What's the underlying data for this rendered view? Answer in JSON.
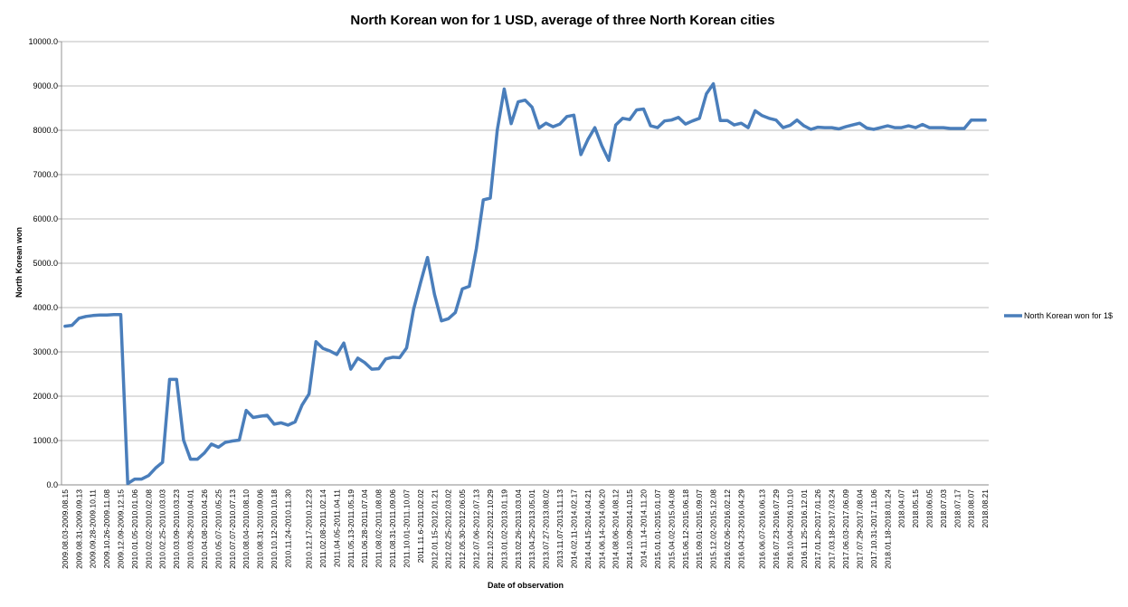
{
  "chart_data": {
    "type": "line",
    "title": "North Korean won for 1 USD, average of three North Korean cities",
    "xlabel": "Date of observation",
    "ylabel": "North Korean won",
    "ylim": [
      0,
      10000
    ],
    "y_ticks": [
      "0.0",
      "1000.0",
      "2000.0",
      "3000.0",
      "4000.0",
      "5000.0",
      "6000.0",
      "7000.0",
      "8000.0",
      "9000.0",
      "10000.0"
    ],
    "grid": "horizontal",
    "legend_position": "right",
    "x_tick_labels": [
      "2009.08.03-2009.08.15",
      "2009.08.31-2009.09.13",
      "2009.09.28-2009.10.11",
      "2009.10.26-2009.11.08",
      "2009.12.09-2009.12.15",
      "2010.01.05-2010.01.06",
      "2010.02.02-2010.02.08",
      "2010.02.25-2010.03.03",
      "2010.03.09-2010.03.23",
      "2010.03.26-2010.04.01",
      "2010.04.08-2010.04.26",
      "2010.05.07-2010.05.25",
      "2010.07.07-2010.07.13",
      "2010.08.04-2010.08.10",
      "2010.08.31-2010.09.06",
      "2010.10.12-2010.10.18",
      "2010.11.24-2010.11.30",
      "2010.12.17-2010.12.23",
      "2011.02.08-2011.02.14",
      "2011.04.05-2011.04.11",
      "2011.05.13-2011.05.19",
      "2011.06.28-2011.07.04",
      "2011.08.02-2011.08.08",
      "2011.08.31-2011.09.06",
      "2011.10.01-2011.10.07",
      "2011.11.6-2011.02.02",
      "2012.01.15-2012.01.21",
      "2012.02.25-2012.03.02",
      "2012.05.30-2012.06.05",
      "2012.07.06-2012.07.13",
      "2012.10.22-2012.10.29",
      "2013.01.02-2013.01.19",
      "2013.02.26-2013.03.04",
      "2013.04.25-2013.05.01",
      "2013.07.27-2013.08.02",
      "2013.11.07-2013.11.13",
      "2014.02.11-2014.02.17",
      "2014.04.15-2014.04.21",
      "2014.06.14-2014.06.20",
      "2014.08.06-2014.08.12",
      "2014.10.09-2014.10.15",
      "2014.11.14-2014.11.20",
      "2015.01.01-2015.01.07",
      "2015.04.02-2015.04.08",
      "2015.06.12-2015.06.18",
      "2015.09.01-2015.09.07",
      "2015.12.02-2015.12.08",
      "2016.02.06-2016.02.12",
      "2016.04.23-2016.04.29",
      "2016.06.07-2016.06.13",
      "2016.07.23-2016.07.29",
      "2016.10.04-2016.10.10",
      "2016.11.25-2016.12.01",
      "2017.01.20-2017.01.26",
      "2017.03.18-2017.03.24",
      "2017.06.03-2017.06.09",
      "2017.07.29-2017.08.04",
      "2017.10.31-2017.11.06",
      "2018.01.18-2018.01.24",
      "2018.04.07",
      "2018.05.15",
      "2018.06.05",
      "2018.07.03",
      "2018.07.17",
      "2018.08.07",
      "2018.08.21"
    ],
    "series": [
      {
        "name": "North Korean won for 1$",
        "color": "#4a7ebb",
        "values": [
          3580,
          3600,
          3760,
          3800,
          3820,
          3830,
          3830,
          3840,
          3840,
          30,
          130,
          130,
          210,
          380,
          510,
          2380,
          2380,
          1010,
          580,
          580,
          720,
          920,
          850,
          960,
          990,
          1010,
          1680,
          1520,
          1550,
          1570,
          1370,
          1400,
          1350,
          1420,
          1800,
          2050,
          3230,
          3080,
          3020,
          2940,
          3200,
          2610,
          2860,
          2760,
          2610,
          2620,
          2840,
          2880,
          2870,
          3090,
          3960,
          4560,
          5130,
          4300,
          3700,
          3750,
          3890,
          4420,
          4480,
          5330,
          6430,
          6470,
          8000,
          8930,
          8150,
          8640,
          8680,
          8520,
          8050,
          8160,
          8080,
          8140,
          8310,
          8340,
          7450,
          7790,
          8060,
          7650,
          7320,
          8120,
          8270,
          8240,
          8460,
          8480,
          8100,
          8060,
          8210,
          8230,
          8290,
          8140,
          8210,
          8270,
          8820,
          9050,
          8220,
          8220,
          8120,
          8160,
          8060,
          8440,
          8330,
          8270,
          8230,
          8060,
          8110,
          8230,
          8100,
          8020,
          8070,
          8060,
          8060,
          8030,
          8080,
          8120,
          8160,
          8050,
          8020,
          8060,
          8100,
          8060,
          8060,
          8100,
          8060,
          8130,
          8060,
          8060,
          8060,
          8040,
          8040,
          8040,
          8230,
          8230,
          8230
        ]
      }
    ]
  }
}
